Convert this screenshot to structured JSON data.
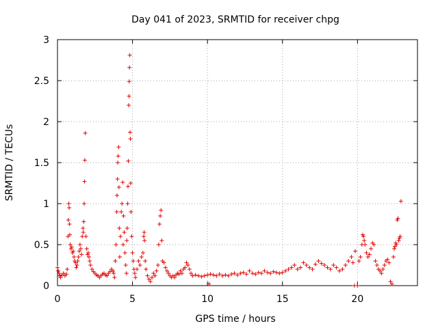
{
  "chart_data": {
    "type": "scatter",
    "title": "Day 041 of 2023, SRMTID for receiver chpg",
    "xlabel": "GPS time / hours",
    "ylabel": "SRMTID / TECUs",
    "xlim": [
      0,
      24
    ],
    "ylim": [
      0,
      3
    ],
    "xticks": [
      0,
      5,
      10,
      15,
      20
    ],
    "xtick_labels": [
      "0",
      "5",
      "10",
      "15",
      "20"
    ],
    "yticks": [
      0,
      0.5,
      1,
      1.5,
      2,
      2.5,
      3
    ],
    "ytick_labels": [
      "0",
      "0.5",
      "1",
      "1.5",
      "2",
      "2.5",
      "3"
    ],
    "grid": true,
    "marker": "+",
    "color": "#e00000",
    "series": [
      {
        "name": "SRMTID",
        "points": [
          [
            0.0,
            0.22
          ],
          [
            0.05,
            0.18
          ],
          [
            0.1,
            0.15
          ],
          [
            0.15,
            0.12
          ],
          [
            0.2,
            0.1
          ],
          [
            0.3,
            0.13
          ],
          [
            0.4,
            0.15
          ],
          [
            0.5,
            0.12
          ],
          [
            0.6,
            0.14
          ],
          [
            0.65,
            0.2
          ],
          [
            0.7,
            0.6
          ],
          [
            0.72,
            0.8
          ],
          [
            0.75,
            1.0
          ],
          [
            0.78,
            0.95
          ],
          [
            0.8,
            0.75
          ],
          [
            0.82,
            0.62
          ],
          [
            0.85,
            0.5
          ],
          [
            0.9,
            0.45
          ],
          [
            0.95,
            0.47
          ],
          [
            1.0,
            0.4
          ],
          [
            1.05,
            0.42
          ],
          [
            1.1,
            0.35
          ],
          [
            1.15,
            0.3
          ],
          [
            1.2,
            0.28
          ],
          [
            1.25,
            0.22
          ],
          [
            1.3,
            0.25
          ],
          [
            1.35,
            0.3
          ],
          [
            1.4,
            0.35
          ],
          [
            1.45,
            0.42
          ],
          [
            1.5,
            0.5
          ],
          [
            1.55,
            0.45
          ],
          [
            1.6,
            0.38
          ],
          [
            1.65,
            0.6
          ],
          [
            1.7,
            0.7
          ],
          [
            1.72,
            0.65
          ],
          [
            1.75,
            0.78
          ],
          [
            1.78,
            1.0
          ],
          [
            1.8,
            1.27
          ],
          [
            1.82,
            1.53
          ],
          [
            1.85,
            1.86
          ],
          [
            1.9,
            0.6
          ],
          [
            1.95,
            0.45
          ],
          [
            2.0,
            0.38
          ],
          [
            2.05,
            0.4
          ],
          [
            2.1,
            0.35
          ],
          [
            2.15,
            0.3
          ],
          [
            2.2,
            0.25
          ],
          [
            2.3,
            0.2
          ],
          [
            2.4,
            0.17
          ],
          [
            2.5,
            0.15
          ],
          [
            2.6,
            0.13
          ],
          [
            2.7,
            0.12
          ],
          [
            2.8,
            0.1
          ],
          [
            2.9,
            0.12
          ],
          [
            3.0,
            0.14
          ],
          [
            3.1,
            0.15
          ],
          [
            3.2,
            0.13
          ],
          [
            3.3,
            0.12
          ],
          [
            3.4,
            0.15
          ],
          [
            3.5,
            0.17
          ],
          [
            3.6,
            0.2
          ],
          [
            3.7,
            0.18
          ],
          [
            3.75,
            0.15
          ],
          [
            3.8,
            0.1
          ],
          [
            3.85,
            0.3
          ],
          [
            3.9,
            0.5
          ],
          [
            3.95,
            0.9
          ],
          [
            3.97,
            1.1
          ],
          [
            4.0,
            1.3
          ],
          [
            4.02,
            1.5
          ],
          [
            4.05,
            1.58
          ],
          [
            4.08,
            1.69
          ],
          [
            4.1,
            1.2
          ],
          [
            4.12,
            0.7
          ],
          [
            4.15,
            0.35
          ],
          [
            4.2,
            0.6
          ],
          [
            4.25,
            0.9
          ],
          [
            4.3,
            1.0
          ],
          [
            4.35,
            1.26
          ],
          [
            4.38,
            0.5
          ],
          [
            4.4,
            0.85
          ],
          [
            4.45,
            0.65
          ],
          [
            4.5,
            0.4
          ],
          [
            4.55,
            0.25
          ],
          [
            4.6,
            0.15
          ],
          [
            4.62,
            0.55
          ],
          [
            4.65,
            0.7
          ],
          [
            4.68,
            1.0
          ],
          [
            4.7,
            1.21
          ],
          [
            4.72,
            1.52
          ],
          [
            4.75,
            2.2
          ],
          [
            4.77,
            2.31
          ],
          [
            4.78,
            2.49
          ],
          [
            4.8,
            2.66
          ],
          [
            4.82,
            2.81
          ],
          [
            4.84,
            1.87
          ],
          [
            4.86,
            1.79
          ],
          [
            4.88,
            1.25
          ],
          [
            4.9,
            0.9
          ],
          [
            4.95,
            0.6
          ],
          [
            5.0,
            0.4
          ],
          [
            5.05,
            0.3
          ],
          [
            5.1,
            0.2
          ],
          [
            5.15,
            0.15
          ],
          [
            5.2,
            0.1
          ],
          [
            5.3,
            0.2
          ],
          [
            5.4,
            0.3
          ],
          [
            5.5,
            0.25
          ],
          [
            5.6,
            0.35
          ],
          [
            5.7,
            0.4
          ],
          [
            5.75,
            0.6
          ],
          [
            5.78,
            0.65
          ],
          [
            5.8,
            0.55
          ],
          [
            5.85,
            0.3
          ],
          [
            5.9,
            0.2
          ],
          [
            6.0,
            0.12
          ],
          [
            6.1,
            0.08
          ],
          [
            6.2,
            0.05
          ],
          [
            6.3,
            0.1
          ],
          [
            6.4,
            0.15
          ],
          [
            6.5,
            0.12
          ],
          [
            6.6,
            0.18
          ],
          [
            6.7,
            0.25
          ],
          [
            6.75,
            0.5
          ],
          [
            6.8,
            0.75
          ],
          [
            6.85,
            0.85
          ],
          [
            6.9,
            0.92
          ],
          [
            6.95,
            0.55
          ],
          [
            7.0,
            0.3
          ],
          [
            7.1,
            0.28
          ],
          [
            7.2,
            0.22
          ],
          [
            7.3,
            0.18
          ],
          [
            7.4,
            0.15
          ],
          [
            7.5,
            0.12
          ],
          [
            7.6,
            0.1
          ],
          [
            7.7,
            0.12
          ],
          [
            7.8,
            0.1
          ],
          [
            7.9,
            0.13
          ],
          [
            8.0,
            0.15
          ],
          [
            8.1,
            0.14
          ],
          [
            8.2,
            0.18
          ],
          [
            8.3,
            0.15
          ],
          [
            8.4,
            0.2
          ],
          [
            8.5,
            0.22
          ],
          [
            8.6,
            0.28
          ],
          [
            8.7,
            0.25
          ],
          [
            8.8,
            0.2
          ],
          [
            8.9,
            0.15
          ],
          [
            9.0,
            0.12
          ],
          [
            9.2,
            0.13
          ],
          [
            9.4,
            0.12
          ],
          [
            9.6,
            0.11
          ],
          [
            9.8,
            0.12
          ],
          [
            10.0,
            0.13
          ],
          [
            10.1,
            0.02
          ],
          [
            10.2,
            0.14
          ],
          [
            10.4,
            0.13
          ],
          [
            10.6,
            0.12
          ],
          [
            10.8,
            0.14
          ],
          [
            11.0,
            0.12
          ],
          [
            11.2,
            0.13
          ],
          [
            11.4,
            0.12
          ],
          [
            11.6,
            0.14
          ],
          [
            11.8,
            0.15
          ],
          [
            12.0,
            0.13
          ],
          [
            12.2,
            0.15
          ],
          [
            12.4,
            0.16
          ],
          [
            12.6,
            0.14
          ],
          [
            12.8,
            0.18
          ],
          [
            13.0,
            0.15
          ],
          [
            13.2,
            0.14
          ],
          [
            13.4,
            0.16
          ],
          [
            13.6,
            0.15
          ],
          [
            13.8,
            0.18
          ],
          [
            14.0,
            0.16
          ],
          [
            14.2,
            0.15
          ],
          [
            14.4,
            0.17
          ],
          [
            14.6,
            0.16
          ],
          [
            14.8,
            0.15
          ],
          [
            15.0,
            0.16
          ],
          [
            15.2,
            0.18
          ],
          [
            15.4,
            0.2
          ],
          [
            15.6,
            0.22
          ],
          [
            15.8,
            0.25
          ],
          [
            16.0,
            0.2
          ],
          [
            16.2,
            0.22
          ],
          [
            16.4,
            0.28
          ],
          [
            16.6,
            0.25
          ],
          [
            16.8,
            0.22
          ],
          [
            17.0,
            0.2
          ],
          [
            17.2,
            0.26
          ],
          [
            17.4,
            0.3
          ],
          [
            17.6,
            0.27
          ],
          [
            17.8,
            0.25
          ],
          [
            18.0,
            0.22
          ],
          [
            18.2,
            0.2
          ],
          [
            18.4,
            0.25
          ],
          [
            18.6,
            0.22
          ],
          [
            18.8,
            0.18
          ],
          [
            19.0,
            0.2
          ],
          [
            19.2,
            0.25
          ],
          [
            19.4,
            0.3
          ],
          [
            19.6,
            0.35
          ],
          [
            19.7,
            0.28
          ],
          [
            19.8,
            0.0
          ],
          [
            19.85,
            0.42
          ],
          [
            20.0,
            0.0
          ],
          [
            20.1,
            0.3
          ],
          [
            20.2,
            0.35
          ],
          [
            20.3,
            0.5
          ],
          [
            20.35,
            0.62
          ],
          [
            20.4,
            0.6
          ],
          [
            20.45,
            0.55
          ],
          [
            20.5,
            0.5
          ],
          [
            20.6,
            0.4
          ],
          [
            20.7,
            0.35
          ],
          [
            20.8,
            0.38
          ],
          [
            20.9,
            0.45
          ],
          [
            21.0,
            0.52
          ],
          [
            21.1,
            0.5
          ],
          [
            21.2,
            0.3
          ],
          [
            21.3,
            0.25
          ],
          [
            21.4,
            0.2
          ],
          [
            21.5,
            0.18
          ],
          [
            21.6,
            0.15
          ],
          [
            21.7,
            0.2
          ],
          [
            21.8,
            0.25
          ],
          [
            21.9,
            0.3
          ],
          [
            22.0,
            0.32
          ],
          [
            22.1,
            0.28
          ],
          [
            22.2,
            0.05
          ],
          [
            22.3,
            0.02
          ],
          [
            22.4,
            0.35
          ],
          [
            22.45,
            0.45
          ],
          [
            22.5,
            0.48
          ],
          [
            22.55,
            0.52
          ],
          [
            22.6,
            0.5
          ],
          [
            22.65,
            0.8
          ],
          [
            22.7,
            0.82
          ],
          [
            22.75,
            0.55
          ],
          [
            22.8,
            0.58
          ],
          [
            22.85,
            0.6
          ],
          [
            22.9,
            1.03
          ]
        ]
      }
    ]
  }
}
